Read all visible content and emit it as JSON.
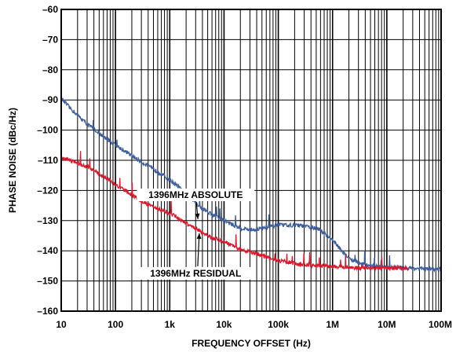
{
  "chart_data": {
    "type": "line",
    "xlabel": "FREQUENCY OFFSET (Hz)",
    "ylabel": "PHASE NOISE (dBc/Hz)",
    "x_scale": "log",
    "xlim": [
      10,
      100000000
    ],
    "ylim": [
      -160,
      -60
    ],
    "grid": true,
    "x_ticks": [
      {
        "value": 10,
        "label": "10"
      },
      {
        "value": 100,
        "label": "100"
      },
      {
        "value": 1000,
        "label": "1k"
      },
      {
        "value": 10000,
        "label": "10k"
      },
      {
        "value": 100000,
        "label": "100k"
      },
      {
        "value": 1000000,
        "label": "1M"
      },
      {
        "value": 10000000,
        "label": "10M"
      },
      {
        "value": 100000000,
        "label": "100M"
      }
    ],
    "y_ticks": [
      {
        "value": -60,
        "label": "–60"
      },
      {
        "value": -70,
        "label": "–70"
      },
      {
        "value": -80,
        "label": "–80"
      },
      {
        "value": -90,
        "label": "–90"
      },
      {
        "value": -100,
        "label": "–100"
      },
      {
        "value": -110,
        "label": "–110"
      },
      {
        "value": -120,
        "label": "–120"
      },
      {
        "value": -130,
        "label": "–130"
      },
      {
        "value": -140,
        "label": "–140"
      },
      {
        "value": -150,
        "label": "–150"
      },
      {
        "value": -160,
        "label": "–160"
      }
    ],
    "series": [
      {
        "name": "1396MHz ABSOLUTE",
        "color": "#3d5e9e",
        "x": [
          10,
          12,
          15,
          20,
          30,
          50,
          70,
          100,
          150,
          200,
          300,
          500,
          700,
          1000,
          1500,
          2000,
          3000,
          4000,
          5000,
          7000,
          10000,
          15000,
          20000,
          30000,
          40000,
          50000,
          70000,
          100000,
          150000,
          200000,
          300000,
          500000,
          700000,
          1000000,
          1500000,
          2000000,
          3000000,
          5000000,
          10000000,
          20000000,
          30000000,
          50000000,
          100000000
        ],
        "y": [
          -89.5,
          -91,
          -93,
          -95,
          -98,
          -101,
          -103,
          -105,
          -107,
          -108.5,
          -110.5,
          -113,
          -114.5,
          -116.5,
          -119,
          -121.5,
          -124,
          -126,
          -127,
          -128.5,
          -130,
          -131.5,
          -132.5,
          -133,
          -133,
          -132.5,
          -132,
          -131.5,
          -131.5,
          -131.5,
          -131.8,
          -132.5,
          -134,
          -136.5,
          -140,
          -142.5,
          -144,
          -145,
          -145.5,
          -145.7,
          -145.8,
          -146,
          -146.2
        ]
      },
      {
        "name": "1396MHz RESIDUAL",
        "color": "#e0162b",
        "x": [
          10,
          12,
          15,
          20,
          30,
          50,
          70,
          100,
          150,
          200,
          300,
          500,
          700,
          1000,
          1500,
          2000,
          3000,
          4000,
          5000,
          7000,
          10000,
          15000,
          20000,
          30000,
          50000,
          70000,
          100000,
          150000,
          200000,
          300000,
          500000,
          700000,
          1000000,
          1500000,
          2000000,
          3000000,
          5000000,
          10000000,
          20000000,
          25000000
        ],
        "y": [
          -109.5,
          -109.5,
          -110,
          -111,
          -112,
          -114.5,
          -116,
          -118,
          -120,
          -121.5,
          -123.5,
          -125.5,
          -126.5,
          -127.5,
          -129.5,
          -131,
          -132.5,
          -134,
          -135,
          -136,
          -137,
          -138.5,
          -139.5,
          -140.5,
          -141.5,
          -142.5,
          -143.2,
          -143.8,
          -144.2,
          -144.6,
          -144.9,
          -145,
          -145.2,
          -145.4,
          -145.5,
          -145.6,
          -145.6,
          -145.7,
          -145.7,
          -145.8
        ]
      }
    ],
    "annotations": [
      {
        "text": "1396MHz ABSOLUTE",
        "series": 0,
        "text_x": 3000,
        "text_y": -122.5,
        "arrow_to_x": 3300,
        "arrow_to_y": -129.5
      },
      {
        "text": "1396MHz RESIDUAL",
        "series": 1,
        "text_x": 3000,
        "text_y": -148.5,
        "arrow_to_x": 3500,
        "arrow_to_y": -134.2
      }
    ]
  }
}
